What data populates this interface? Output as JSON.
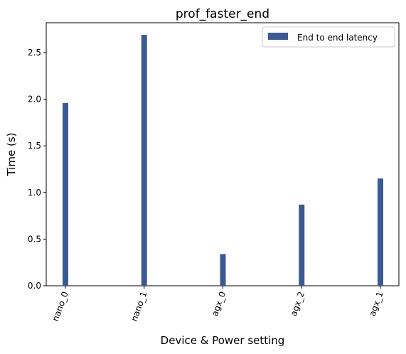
{
  "chart_data": {
    "type": "bar",
    "title": "prof_faster_end",
    "xlabel": "Device & Power setting",
    "ylabel": "Time (s)",
    "categories": [
      "nano_0",
      "nano_1",
      "agx_0",
      "agx_2",
      "agx_1"
    ],
    "series": [
      {
        "name": "End to end latency",
        "values": [
          1.96,
          2.69,
          0.34,
          0.87,
          1.15
        ],
        "color": "#3b5a94"
      }
    ],
    "yticks": [
      "0.0",
      "0.5",
      "1.0",
      "1.5",
      "2.0",
      "2.5"
    ],
    "ylim": [
      0,
      2.82
    ],
    "grid": false,
    "legend_position": "top-right"
  }
}
